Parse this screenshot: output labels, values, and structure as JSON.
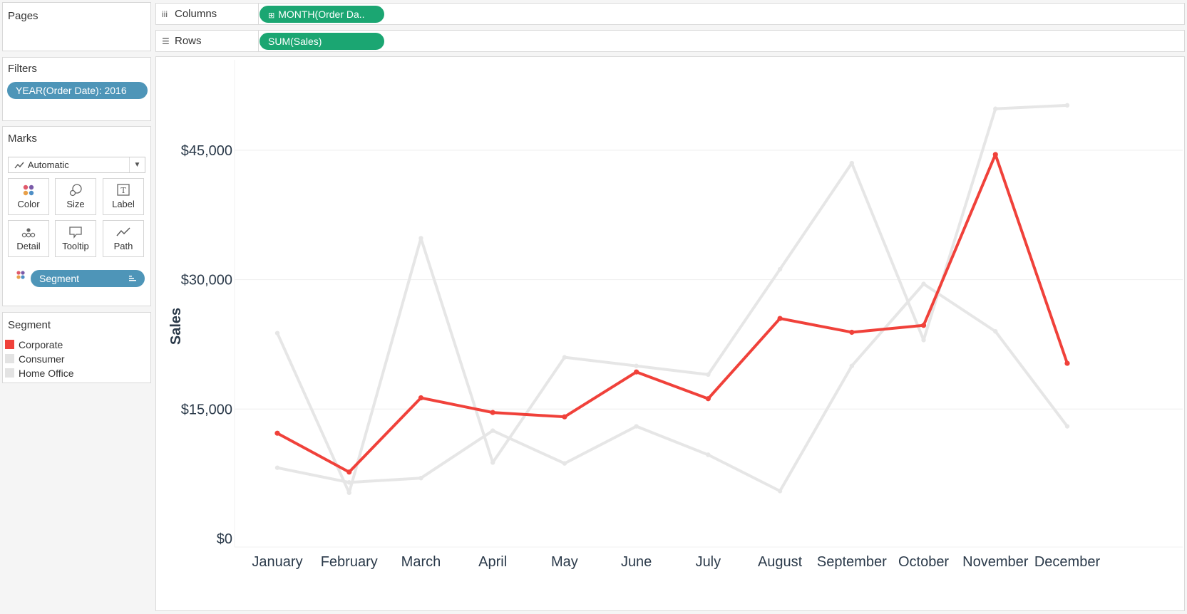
{
  "pages": {
    "title": "Pages"
  },
  "filters": {
    "title": "Filters",
    "pill": "YEAR(Order Date): 2016"
  },
  "marks": {
    "title": "Marks",
    "type": "Automatic",
    "buttons": [
      {
        "label": "Color",
        "icon": "color-dots-icon"
      },
      {
        "label": "Size",
        "icon": "size-circles-icon"
      },
      {
        "label": "Label",
        "icon": "label-text-icon"
      },
      {
        "label": "Detail",
        "icon": "detail-dots-icon"
      },
      {
        "label": "Tooltip",
        "icon": "tooltip-bubble-icon"
      },
      {
        "label": "Path",
        "icon": "path-line-icon"
      }
    ],
    "field": "Segment"
  },
  "legend": {
    "title": "Segment",
    "items": [
      {
        "label": "Corporate",
        "color": "#f0413a"
      },
      {
        "label": "Consumer",
        "color": "#e3e3e3"
      },
      {
        "label": "Home Office",
        "color": "#e3e3e3"
      }
    ]
  },
  "shelves": {
    "columns_label": "Columns",
    "columns_pill": "MONTH(Order Da..",
    "rows_label": "Rows",
    "rows_pill": "SUM(Sales)"
  },
  "chart_data": {
    "type": "line",
    "categories": [
      "January",
      "February",
      "March",
      "April",
      "May",
      "June",
      "July",
      "August",
      "September",
      "October",
      "November",
      "December"
    ],
    "ylabel": "Sales",
    "ylim": [
      0,
      52500
    ],
    "yticks": [
      0,
      15000,
      30000,
      45000
    ],
    "ytick_labels": [
      "$0",
      "$15,000",
      "$30,000",
      "$45,000"
    ],
    "grid": true,
    "series": [
      {
        "name": "Consumer",
        "color": "#e6e6e6",
        "values": [
          23800,
          5300,
          34800,
          8800,
          21000,
          20000,
          19000,
          31200,
          43500,
          23000,
          49800,
          50200
        ]
      },
      {
        "name": "Home Office",
        "color": "#e6e6e6",
        "values": [
          8200,
          6500,
          7000,
          12500,
          8700,
          13000,
          9700,
          5500,
          20000,
          29500,
          24000,
          13000
        ]
      },
      {
        "name": "Corporate",
        "color": "#f0413a",
        "values": [
          12200,
          7700,
          16300,
          14600,
          14100,
          19300,
          16200,
          25500,
          23900,
          24700,
          44500,
          20300
        ]
      }
    ]
  }
}
